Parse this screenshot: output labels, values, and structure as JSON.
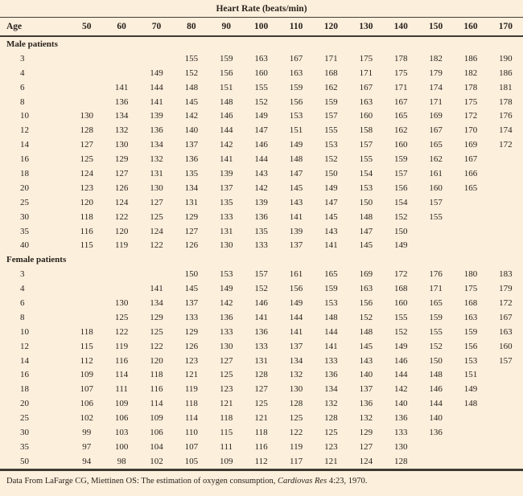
{
  "title": "Heart Rate (beats/min)",
  "columns": [
    "Age",
    "50",
    "60",
    "70",
    "80",
    "90",
    "100",
    "110",
    "120",
    "130",
    "140",
    "150",
    "160",
    "170"
  ],
  "sections": [
    {
      "label": "Male patients",
      "rows": [
        {
          "age": "3",
          "values": [
            "",
            "",
            "",
            "155",
            "159",
            "163",
            "167",
            "171",
            "175",
            "178",
            "182",
            "186",
            "190"
          ]
        },
        {
          "age": "4",
          "values": [
            "",
            "",
            "149",
            "152",
            "156",
            "160",
            "163",
            "168",
            "171",
            "175",
            "179",
            "182",
            "186"
          ]
        },
        {
          "age": "6",
          "values": [
            "",
            "141",
            "144",
            "148",
            "151",
            "155",
            "159",
            "162",
            "167",
            "171",
            "174",
            "178",
            "181"
          ]
        },
        {
          "age": "8",
          "values": [
            "",
            "136",
            "141",
            "145",
            "148",
            "152",
            "156",
            "159",
            "163",
            "167",
            "171",
            "175",
            "178"
          ]
        },
        {
          "age": "10",
          "values": [
            "130",
            "134",
            "139",
            "142",
            "146",
            "149",
            "153",
            "157",
            "160",
            "165",
            "169",
            "172",
            "176"
          ]
        },
        {
          "age": "12",
          "values": [
            "128",
            "132",
            "136",
            "140",
            "144",
            "147",
            "151",
            "155",
            "158",
            "162",
            "167",
            "170",
            "174"
          ]
        },
        {
          "age": "14",
          "values": [
            "127",
            "130",
            "134",
            "137",
            "142",
            "146",
            "149",
            "153",
            "157",
            "160",
            "165",
            "169",
            "172"
          ]
        },
        {
          "age": "16",
          "values": [
            "125",
            "129",
            "132",
            "136",
            "141",
            "144",
            "148",
            "152",
            "155",
            "159",
            "162",
            "167",
            ""
          ]
        },
        {
          "age": "18",
          "values": [
            "124",
            "127",
            "131",
            "135",
            "139",
            "143",
            "147",
            "150",
            "154",
            "157",
            "161",
            "166",
            ""
          ]
        },
        {
          "age": "20",
          "values": [
            "123",
            "126",
            "130",
            "134",
            "137",
            "142",
            "145",
            "149",
            "153",
            "156",
            "160",
            "165",
            ""
          ]
        },
        {
          "age": "25",
          "values": [
            "120",
            "124",
            "127",
            "131",
            "135",
            "139",
            "143",
            "147",
            "150",
            "154",
            "157",
            "",
            ""
          ]
        },
        {
          "age": "30",
          "values": [
            "118",
            "122",
            "125",
            "129",
            "133",
            "136",
            "141",
            "145",
            "148",
            "152",
            "155",
            "",
            ""
          ]
        },
        {
          "age": "35",
          "values": [
            "116",
            "120",
            "124",
            "127",
            "131",
            "135",
            "139",
            "143",
            "147",
            "150",
            "",
            "",
            ""
          ]
        },
        {
          "age": "40",
          "values": [
            "115",
            "119",
            "122",
            "126",
            "130",
            "133",
            "137",
            "141",
            "145",
            "149",
            "",
            "",
            ""
          ]
        }
      ]
    },
    {
      "label": "Female patients",
      "rows": [
        {
          "age": "3",
          "values": [
            "",
            "",
            "",
            "150",
            "153",
            "157",
            "161",
            "165",
            "169",
            "172",
            "176",
            "180",
            "183"
          ]
        },
        {
          "age": "4",
          "values": [
            "",
            "",
            "141",
            "145",
            "149",
            "152",
            "156",
            "159",
            "163",
            "168",
            "171",
            "175",
            "179"
          ]
        },
        {
          "age": "6",
          "values": [
            "",
            "130",
            "134",
            "137",
            "142",
            "146",
            "149",
            "153",
            "156",
            "160",
            "165",
            "168",
            "172"
          ]
        },
        {
          "age": "8",
          "values": [
            "",
            "125",
            "129",
            "133",
            "136",
            "141",
            "144",
            "148",
            "152",
            "155",
            "159",
            "163",
            "167"
          ]
        },
        {
          "age": "10",
          "values": [
            "118",
            "122",
            "125",
            "129",
            "133",
            "136",
            "141",
            "144",
            "148",
            "152",
            "155",
            "159",
            "163"
          ]
        },
        {
          "age": "12",
          "values": [
            "115",
            "119",
            "122",
            "126",
            "130",
            "133",
            "137",
            "141",
            "145",
            "149",
            "152",
            "156",
            "160"
          ]
        },
        {
          "age": "14",
          "values": [
            "112",
            "116",
            "120",
            "123",
            "127",
            "131",
            "134",
            "133",
            "143",
            "146",
            "150",
            "153",
            "157"
          ]
        },
        {
          "age": "16",
          "values": [
            "109",
            "114",
            "118",
            "121",
            "125",
            "128",
            "132",
            "136",
            "140",
            "144",
            "148",
            "151",
            ""
          ]
        },
        {
          "age": "18",
          "values": [
            "107",
            "111",
            "116",
            "119",
            "123",
            "127",
            "130",
            "134",
            "137",
            "142",
            "146",
            "149",
            ""
          ]
        },
        {
          "age": "20",
          "values": [
            "106",
            "109",
            "114",
            "118",
            "121",
            "125",
            "128",
            "132",
            "136",
            "140",
            "144",
            "148",
            ""
          ]
        },
        {
          "age": "25",
          "values": [
            "102",
            "106",
            "109",
            "114",
            "118",
            "121",
            "125",
            "128",
            "132",
            "136",
            "140",
            "",
            ""
          ]
        },
        {
          "age": "30",
          "values": [
            "99",
            "103",
            "106",
            "110",
            "115",
            "118",
            "122",
            "125",
            "129",
            "133",
            "136",
            "",
            ""
          ]
        },
        {
          "age": "35",
          "values": [
            "97",
            "100",
            "104",
            "107",
            "111",
            "116",
            "119",
            "123",
            "127",
            "130",
            "",
            "",
            ""
          ]
        },
        {
          "age": "50",
          "values": [
            "94",
            "98",
            "102",
            "105",
            "109",
            "112",
            "117",
            "121",
            "124",
            "128",
            "",
            "",
            ""
          ]
        }
      ]
    }
  ],
  "footer": {
    "prefix": "Data From LaFarge CG, Miettinen OS: The estimation of oxygen consumption, ",
    "journal": "Cardiovas Res",
    "suffix": " 4:23, 1970."
  },
  "colors": {
    "background": "#fcefdc",
    "text": "#29231d",
    "rule": "#3f3a31"
  }
}
